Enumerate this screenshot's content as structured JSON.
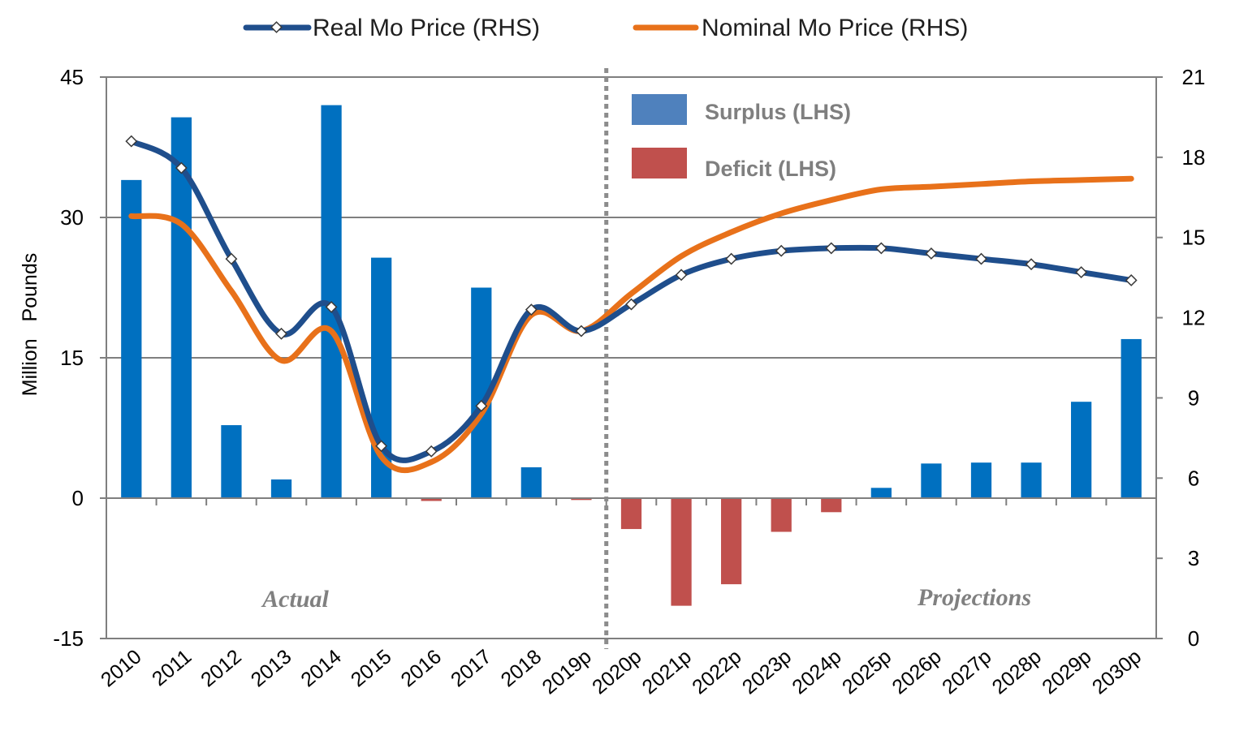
{
  "chart_data": {
    "type": "bar+line",
    "categories": [
      "2010",
      "2011",
      "2012",
      "2013",
      "2014",
      "2015",
      "2016",
      "2017",
      "2018",
      "2019p",
      "2020p",
      "2021p",
      "2022p",
      "2023p",
      "2024p",
      "2025p",
      "2026p",
      "2027p",
      "2028p",
      "2029p",
      "2030p"
    ],
    "bar_series": [
      {
        "name": "Surplus (LHS)",
        "color": "#0070C0",
        "legend_color": "#4F81BD",
        "values": [
          34,
          40.7,
          7.8,
          2,
          42,
          25.7,
          0,
          22.5,
          3.3,
          0,
          0,
          0,
          0,
          0,
          0,
          1.1,
          3.7,
          3.8,
          3.8,
          10.3,
          17
        ]
      },
      {
        "name": "Deficit (LHS)",
        "color": "#C0504D",
        "values": [
          0,
          0,
          0,
          0,
          0,
          0,
          -0.3,
          0,
          0,
          -0.2,
          -3.3,
          -11.5,
          -9.2,
          -3.6,
          -1.5,
          0,
          0,
          0,
          0,
          0,
          0
        ]
      }
    ],
    "line_series": [
      {
        "name": "Real Mo Price (RHS)",
        "color": "#1F4E8C",
        "markers": true,
        "values": [
          18.6,
          17.6,
          14.2,
          11.4,
          12.4,
          7.2,
          7.0,
          8.7,
          12.3,
          11.5,
          12.5,
          13.6,
          14.2,
          14.5,
          14.6,
          14.6,
          14.4,
          14.2,
          14.0,
          13.7,
          13.4
        ]
      },
      {
        "name": "Nominal Mo Price (RHS)",
        "color": "#E8711A",
        "markers": false,
        "values": [
          15.8,
          15.5,
          13.0,
          10.4,
          11.5,
          6.8,
          6.6,
          8.4,
          12.1,
          11.5,
          12.9,
          14.3,
          15.2,
          15.9,
          16.4,
          16.8,
          16.9,
          17.0,
          17.1,
          17.15,
          17.2
        ]
      }
    ],
    "y_left": {
      "label": "Million   Pounds",
      "min": -15,
      "max": 45,
      "ticks": [
        -15,
        0,
        15,
        30,
        45
      ]
    },
    "y_right": {
      "min": 0,
      "max": 21,
      "ticks": [
        0,
        3,
        6,
        9,
        12,
        15,
        18,
        21
      ]
    },
    "gridlines": [
      15,
      30
    ],
    "divider_after_category": "2019p",
    "annotations": {
      "left": "Actual",
      "right": "Projections"
    },
    "legend_position": "top"
  }
}
